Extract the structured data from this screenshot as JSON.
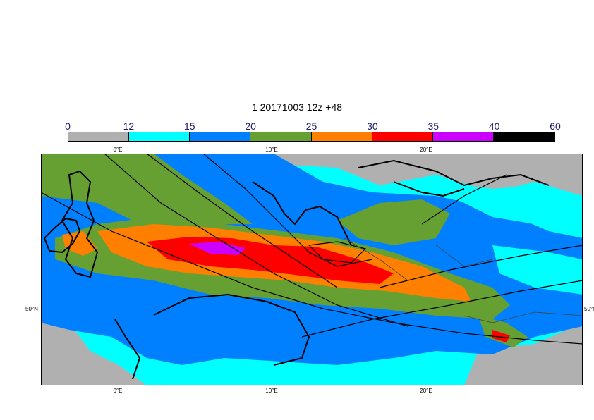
{
  "title": "1 20171003 12z +48",
  "colorbar": {
    "boundaries": [
      "0",
      "12",
      "15",
      "20",
      "25",
      "30",
      "35",
      "40",
      "60"
    ],
    "colors": [
      "#b0b0b0",
      "#00ffff",
      "#0080ff",
      "#66a032",
      "#ff8000",
      "#ff0000",
      "#cc00ff",
      "#000000"
    ]
  },
  "map": {
    "lon_ticks_top": [
      "0°E",
      "10°E",
      "20°E"
    ],
    "lon_ticks_bottom": [
      "0°E",
      "10°E",
      "20°E"
    ],
    "lat_label_left": "50°N",
    "lat_label_right": "50°N",
    "colors": {
      "ocean": "#00ffff",
      "land_low": "#b0b0b0",
      "band_20": "#0080ff",
      "band_25": "#66a032",
      "band_30": "#ff8000",
      "band_35": "#ff0000",
      "band_40": "#cc00ff"
    }
  }
}
